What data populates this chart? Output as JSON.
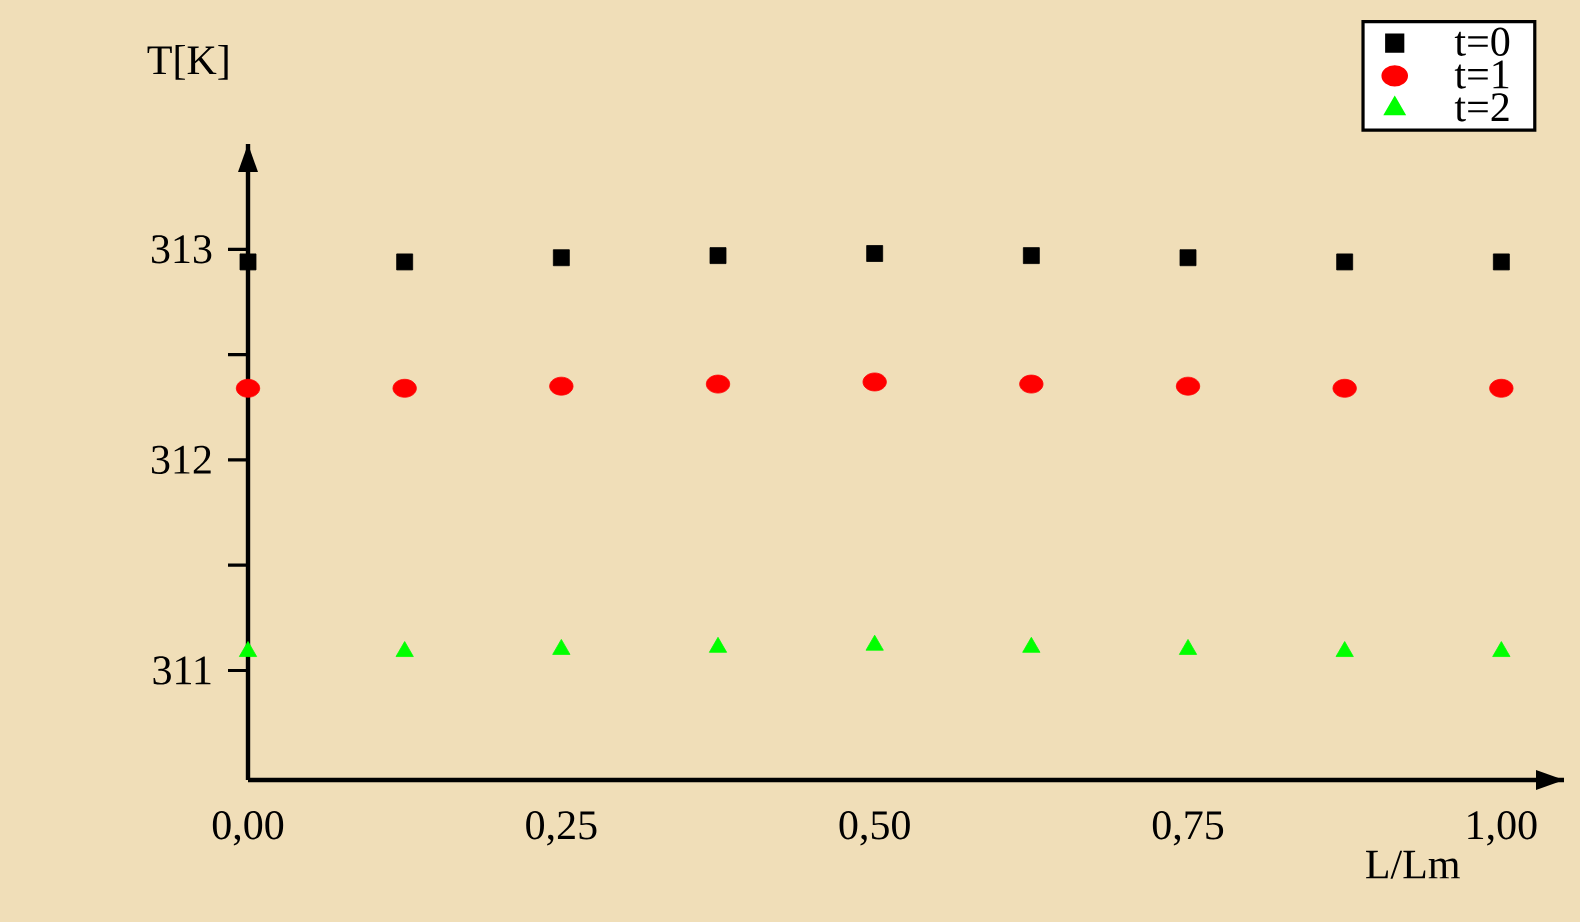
{
  "chart_data": {
    "type": "scatter",
    "xlabel": "L/Lm",
    "ylabel": "T[K]",
    "x": [
      0,
      0.125,
      0.25,
      0.375,
      0.5,
      0.625,
      0.75,
      0.875,
      1.0
    ],
    "series": [
      {
        "name": "t=0",
        "color": "#000000",
        "marker": "square",
        "values": [
          312.94,
          312.94,
          312.96,
          312.97,
          312.98,
          312.97,
          312.96,
          312.94,
          312.94
        ]
      },
      {
        "name": "t=1",
        "color": "#ff0000",
        "marker": "circle",
        "values": [
          312.34,
          312.34,
          312.35,
          312.36,
          312.37,
          312.36,
          312.35,
          312.34,
          312.34
        ]
      },
      {
        "name": "t=2",
        "color": "#00ff00",
        "marker": "triangle",
        "values": [
          311.09,
          311.09,
          311.1,
          311.11,
          311.12,
          311.11,
          311.1,
          311.09,
          311.09
        ]
      }
    ],
    "xlim": [
      0,
      1.05
    ],
    "ylim": [
      310.48,
      313.5
    ],
    "xticks": [
      {
        "value": 0,
        "label": "0,00"
      },
      {
        "value": 0.25,
        "label": "0,25"
      },
      {
        "value": 0.5,
        "label": "0,50"
      },
      {
        "value": 0.75,
        "label": "0,75"
      },
      {
        "value": 1,
        "label": "1,00"
      }
    ],
    "yticks": [
      311,
      {
        "value": 311.5,
        "label": null
      },
      312,
      {
        "value": 312.5,
        "label": null
      },
      313
    ],
    "legend": "top right"
  }
}
